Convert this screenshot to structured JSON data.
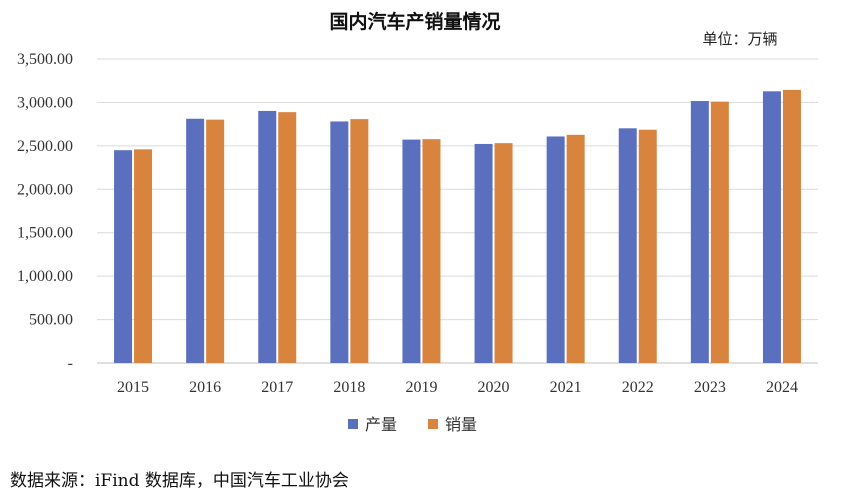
{
  "chart_data": {
    "type": "bar",
    "title": "国内汽车产销量情况",
    "unit_label": "单位：万辆",
    "categories": [
      "2015",
      "2016",
      "2017",
      "2018",
      "2019",
      "2020",
      "2021",
      "2022",
      "2023",
      "2024"
    ],
    "series": [
      {
        "name": "产量",
        "color": "#5b6fbf",
        "values": [
          2450,
          2812,
          2902,
          2781,
          2572,
          2522,
          2608,
          2702,
          3016,
          3128
        ]
      },
      {
        "name": "销量",
        "color": "#d9843e",
        "values": [
          2460,
          2802,
          2888,
          2808,
          2577,
          2531,
          2627,
          2686,
          3009,
          3144
        ]
      }
    ],
    "ylim": [
      0,
      3500
    ],
    "yticks": [
      0,
      500,
      1000,
      1500,
      2000,
      2500,
      3000,
      3500
    ],
    "ytick_labels": [
      "-",
      "500.00",
      "1,000.00",
      "1,500.00",
      "2,000.00",
      "2,500.00",
      "3,000.00",
      "3,500.00"
    ],
    "grid": true,
    "legend_position": "bottom"
  },
  "source_text": "数据来源：iFind 数据库，中国汽车工业协会"
}
